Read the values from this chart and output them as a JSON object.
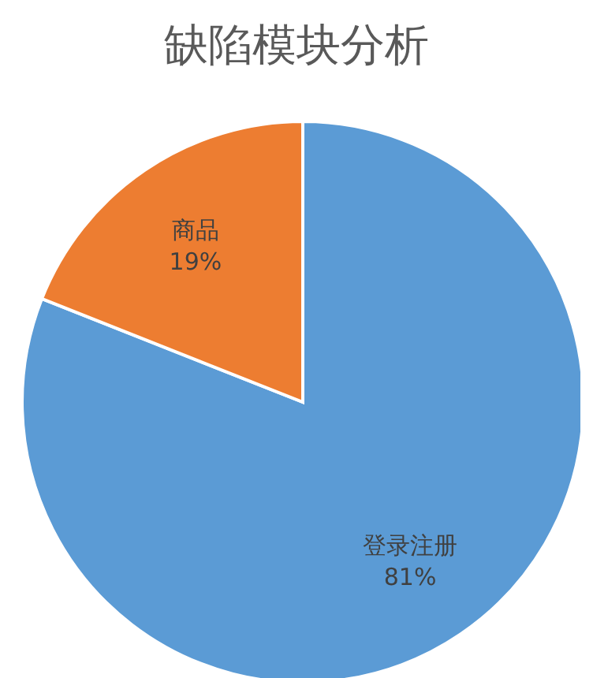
{
  "chart_data": {
    "type": "pie",
    "title": "缺陷模块分析",
    "categories": [
      "登录注册",
      "商品"
    ],
    "values": [
      81,
      19
    ],
    "value_labels": [
      "81%",
      "19%"
    ],
    "colors": [
      "#5b9bd5",
      "#ed7d31"
    ],
    "legend": false
  }
}
